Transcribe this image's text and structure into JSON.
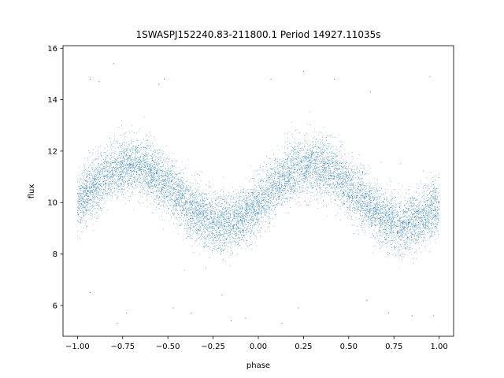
{
  "chart_data": {
    "type": "scatter",
    "title": "1SWASPJ152240.83-211800.1 Period 14927.11035s",
    "xlabel": "phase",
    "ylabel": "flux",
    "xlim": [
      -1.08,
      1.08
    ],
    "ylim": [
      4.8,
      16.1
    ],
    "xticks": [
      -1.0,
      -0.75,
      -0.5,
      -0.25,
      0.0,
      0.25,
      0.5,
      0.75,
      1.0
    ],
    "xtick_labels": [
      "−1.00",
      "−0.75",
      "−0.50",
      "−0.25",
      "0.00",
      "0.25",
      "0.50",
      "0.75",
      "1.00"
    ],
    "yticks": [
      6,
      8,
      10,
      12,
      14,
      16
    ],
    "ytick_labels": [
      "6",
      "8",
      "10",
      "12",
      "14",
      "16"
    ],
    "grid": false,
    "series": [
      {
        "color": "#1f77b4",
        "marker_size": 0.6,
        "phase_range": [
          -1.0,
          1.0
        ],
        "model": {
          "mean": 10.3,
          "amplitude": 1.15,
          "period_in_phase": 1.0,
          "peak_phase": 0.3
        },
        "scatter_sigma": 0.55,
        "n_points": 16000,
        "outliers": [
          {
            "x": -0.8,
            "y": 15.4
          },
          {
            "x": -0.93,
            "y": 14.8
          },
          {
            "x": -0.88,
            "y": 14.7
          },
          {
            "x": -0.55,
            "y": 14.6
          },
          {
            "x": -0.52,
            "y": 14.8
          },
          {
            "x": 0.07,
            "y": 14.8
          },
          {
            "x": 0.25,
            "y": 15.1
          },
          {
            "x": 0.42,
            "y": 14.8
          },
          {
            "x": 0.62,
            "y": 14.3
          },
          {
            "x": 0.95,
            "y": 14.9
          },
          {
            "x": -0.73,
            "y": 5.7
          },
          {
            "x": -0.78,
            "y": 5.3
          },
          {
            "x": -0.47,
            "y": 5.9
          },
          {
            "x": -0.37,
            "y": 5.7
          },
          {
            "x": -0.15,
            "y": 5.4
          },
          {
            "x": -0.07,
            "y": 5.5
          },
          {
            "x": 0.13,
            "y": 5.3
          },
          {
            "x": 0.22,
            "y": 5.9
          },
          {
            "x": 0.72,
            "y": 5.7
          },
          {
            "x": 0.85,
            "y": 5.6
          },
          {
            "x": 0.97,
            "y": 5.6
          },
          {
            "x": -0.93,
            "y": 6.5
          },
          {
            "x": 0.6,
            "y": 6.2
          },
          {
            "x": -0.2,
            "y": 6.4
          }
        ]
      }
    ]
  }
}
